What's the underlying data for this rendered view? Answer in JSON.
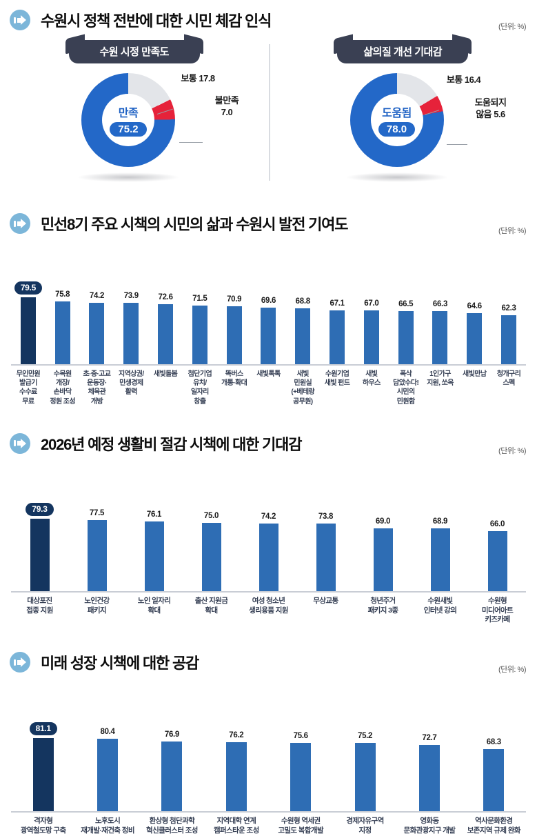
{
  "unit_label": "(단위: %)",
  "colors": {
    "bar_blue": "#2E6DB4",
    "bar_navy": "#14355F",
    "donut_blue": "#2368C8",
    "donut_gray": "#E3E5E9",
    "donut_red": "#E6223A",
    "ribbon": "#3A4053",
    "icon_circle": "#7CB6D9"
  },
  "sections": [
    {
      "title": "수원시 정책 전반에 대한 시민 체감 인식"
    },
    {
      "title": "민선8기 주요 시책의 시민의 삶과 수원시 발전 기여도"
    },
    {
      "title": "2026년 예정 생활비 절감 시책에 대한 기대감"
    },
    {
      "title": "미래 성장 시책에 대한 공감"
    }
  ],
  "donuts": [
    {
      "header": "수원 시정 만족도",
      "center_label": "만족",
      "center_value": "75.2",
      "callout1": "보통 17.8",
      "callout2": "불만족\n7.0"
    },
    {
      "header": "삶의질 개선 기대감",
      "center_label": "도움됨",
      "center_value": "78.0",
      "callout1": "보통 16.4",
      "callout2": "도움되지\n않음 5.6"
    }
  ],
  "chart_data": [
    {
      "type": "pie",
      "title": "수원 시정 만족도",
      "labels": [
        "만족",
        "보통",
        "불만족"
      ],
      "values": [
        75.2,
        17.8,
        7.0
      ],
      "colors": [
        "#2368C8",
        "#E3E5E9",
        "#E6223A"
      ],
      "unit": "%"
    },
    {
      "type": "pie",
      "title": "삶의질 개선 기대감",
      "labels": [
        "도움됨",
        "보통",
        "도움되지 않음"
      ],
      "values": [
        78.0,
        16.4,
        5.6
      ],
      "colors": [
        "#2368C8",
        "#E3E5E9",
        "#E6223A"
      ],
      "unit": "%"
    },
    {
      "type": "bar",
      "title": "민선8기 주요 시책의 시민의 삶과 수원시 발전 기여도",
      "unit": "%",
      "highlight_index": 0,
      "categories": [
        "무인민원\n발급기\n수수료\n무료",
        "수목원\n개장/\n손바닥\n정원 조성",
        "초·중·고교\n운동장·\n체육관\n개방",
        "지역상권/\n민생경제\n활력",
        "새빛돌봄",
        "첨단기업\n유치/\n일자리\n창출",
        "똑버스\n개통·확대",
        "새빛톡톡",
        "새빛\n민원실\n(+베테랑\n공무원)",
        "수원기업\n새빛 펀드",
        "새빛\n하우스",
        "폭삭\n담았수다!\n시민의\n민원함",
        "1인가구\n지원, 쏘옥",
        "새빛만남",
        "청개구리\n스펙"
      ],
      "values": [
        79.5,
        75.8,
        74.2,
        73.9,
        72.6,
        71.5,
        70.9,
        69.6,
        68.8,
        67.1,
        67.0,
        66.5,
        66.3,
        64.6,
        62.3
      ]
    },
    {
      "type": "bar",
      "title": "2026년 예정 생활비 절감 시책에 대한 기대감",
      "unit": "%",
      "highlight_index": 0,
      "categories": [
        "대상포진\n접종 지원",
        "노인건강\n패키지",
        "노인 일자리\n확대",
        "출산 지원금\n확대",
        "여성 청소년\n생리용품 지원",
        "무상교통",
        "청년주거\n패키지 3종",
        "수원새빛\n인터넷 강의",
        "수원형\n미디어아트\n키즈카페"
      ],
      "values": [
        79.3,
        77.5,
        76.1,
        75.0,
        74.2,
        73.8,
        69.0,
        68.9,
        66.0
      ]
    },
    {
      "type": "bar",
      "title": "미래 성장 시책에 대한 공감",
      "unit": "%",
      "highlight_index": 0,
      "categories": [
        "격자형\n광역철도망 구축",
        "노후도시\n재개발·재건축 정비",
        "환상형 첨단과학\n혁신클러스터 조성",
        "지역대학 연계\n캠퍼스타운 조성",
        "수원형 역세권\n고밀도 복합개발",
        "경제자유구역\n지정",
        "영화동\n문화관광지구 개발",
        "역사문화환경\n보존지역 규제 완화"
      ],
      "values": [
        81.1,
        80.4,
        76.9,
        76.2,
        75.6,
        75.2,
        72.7,
        68.3
      ]
    }
  ]
}
